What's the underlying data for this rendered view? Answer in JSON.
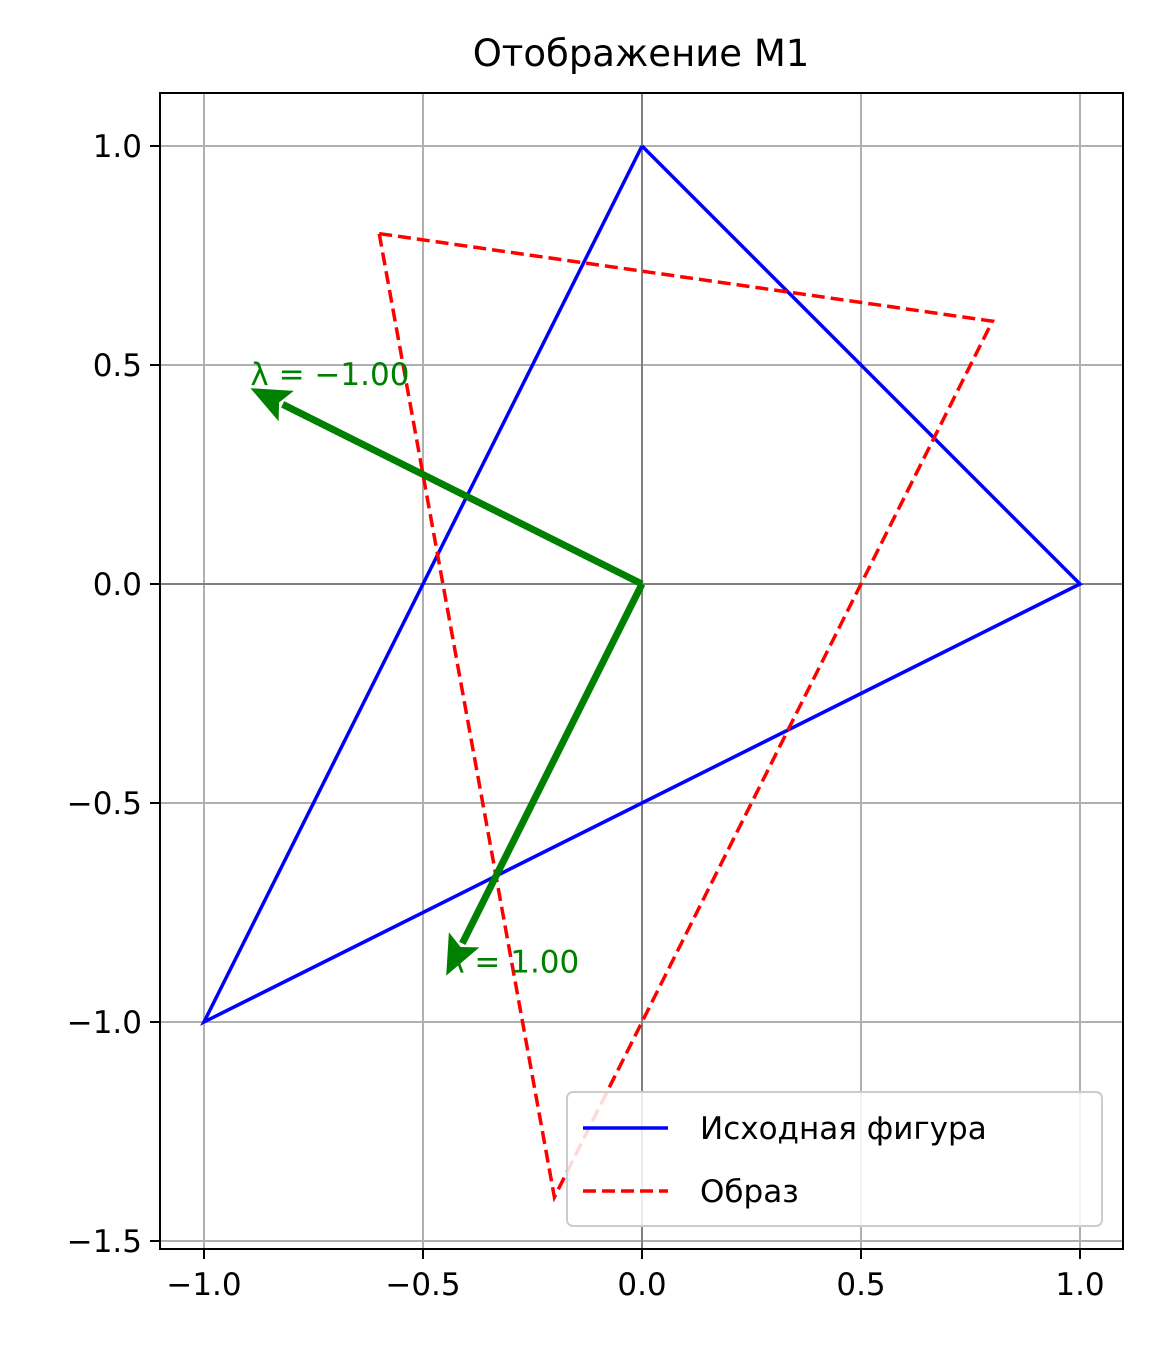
{
  "chart_data": {
    "type": "line",
    "title": "Отображение M1",
    "xlabel": "",
    "ylabel": "",
    "xlim": [
      -1.1,
      1.1
    ],
    "ylim": [
      -1.52,
      1.12
    ],
    "xticks": [
      -1.0,
      -0.5,
      0.0,
      0.5,
      1.0
    ],
    "xtick_labels": [
      "−1.0",
      "−0.5",
      "0.0",
      "0.5",
      "1.0"
    ],
    "yticks": [
      1.0,
      0.5,
      0.0,
      -0.5,
      -1.0,
      -1.5
    ],
    "ytick_labels": [
      "1.0",
      "0.5",
      "0.0",
      "−0.5",
      "−1.0",
      "−1.5"
    ],
    "grid": true,
    "legend_position": "lower-right",
    "series": [
      {
        "name": "Исходная фигура",
        "style": "solid",
        "color": "#0000ff",
        "x": [
          0.0,
          1.0,
          -1.0,
          0.0
        ],
        "y": [
          1.0,
          0.0,
          -1.0,
          1.0
        ]
      },
      {
        "name": "Образ",
        "style": "dashed",
        "color": "#ff0000",
        "x": [
          -0.6,
          0.8,
          -0.2,
          -0.6
        ],
        "y": [
          0.8,
          0.6,
          -1.4,
          0.8
        ]
      }
    ],
    "eigenvectors": [
      {
        "label": "λ = −1.00",
        "color": "#008000",
        "x": [
          0.0,
          -0.894
        ],
        "y": [
          0.0,
          0.447
        ]
      },
      {
        "label": "λ = 1.00",
        "color": "#008000",
        "x": [
          0.0,
          -0.447
        ],
        "y": [
          0.0,
          -0.894
        ]
      }
    ]
  }
}
